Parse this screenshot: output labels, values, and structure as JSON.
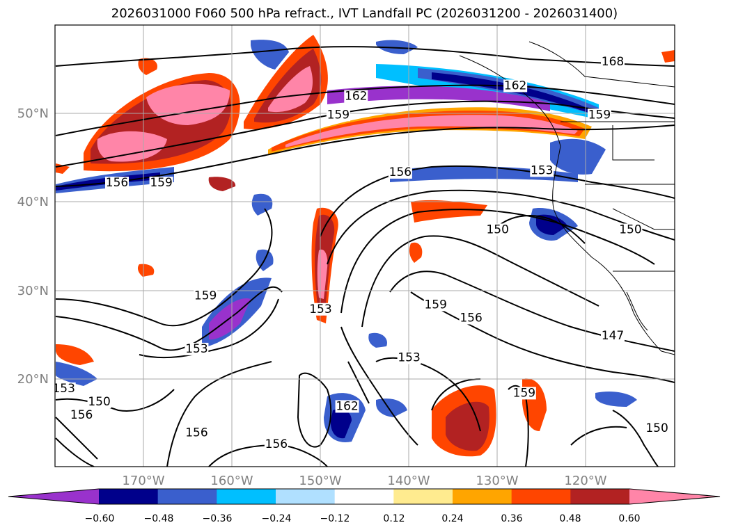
{
  "title": "2026031000 F060 500 hPa refract., IVT Landfall PC (2026031200 - 2026031400)",
  "map": {
    "lon_min": -180,
    "lon_max": -110,
    "lat_min": 10,
    "lat_max": 60,
    "lat_ticks": [
      {
        "value": 20,
        "label": "20°N"
      },
      {
        "value": 30,
        "label": "30°N"
      },
      {
        "value": 40,
        "label": "40°N"
      },
      {
        "value": 50,
        "label": "50°N"
      }
    ],
    "lon_ticks": [
      {
        "value": -170,
        "label": "170°W"
      },
      {
        "value": -160,
        "label": "160°W"
      },
      {
        "value": -150,
        "label": "150°W"
      },
      {
        "value": -140,
        "label": "140°W"
      },
      {
        "value": -130,
        "label": "130°W"
      },
      {
        "value": -120,
        "label": "120°W"
      }
    ]
  },
  "contour_labels": [
    {
      "text": "168",
      "lon": -117,
      "lat": 55.5
    },
    {
      "text": "162",
      "lon": -146,
      "lat": 51.6
    },
    {
      "text": "159",
      "lon": -148,
      "lat": 49.5
    },
    {
      "text": "162",
      "lon": -128,
      "lat": 52.8
    },
    {
      "text": "159",
      "lon": -118.5,
      "lat": 49.5
    },
    {
      "text": "156",
      "lon": -173,
      "lat": 41.8
    },
    {
      "text": "159",
      "lon": -168,
      "lat": 41.8
    },
    {
      "text": "156",
      "lon": -141,
      "lat": 43.0
    },
    {
      "text": "153",
      "lon": -125,
      "lat": 43.2
    },
    {
      "text": "150",
      "lon": -130,
      "lat": 36.5
    },
    {
      "text": "150",
      "lon": -115,
      "lat": 36.5
    },
    {
      "text": "159",
      "lon": -163,
      "lat": 29.0
    },
    {
      "text": "153",
      "lon": -150,
      "lat": 27.5
    },
    {
      "text": "159",
      "lon": -137,
      "lat": 28.0
    },
    {
      "text": "156",
      "lon": -133,
      "lat": 26.5
    },
    {
      "text": "153",
      "lon": -164,
      "lat": 23.0
    },
    {
      "text": "153",
      "lon": -140,
      "lat": 22.0
    },
    {
      "text": "147",
      "lon": -117,
      "lat": 24.5
    },
    {
      "text": "153",
      "lon": -179,
      "lat": 18.5
    },
    {
      "text": "150",
      "lon": -175,
      "lat": 17.0
    },
    {
      "text": "156",
      "lon": -177,
      "lat": 15.5
    },
    {
      "text": "156",
      "lon": -164,
      "lat": 13.5
    },
    {
      "text": "162",
      "lon": -147,
      "lat": 16.5
    },
    {
      "text": "156",
      "lon": -155,
      "lat": 12.2
    },
    {
      "text": "159",
      "lon": -127,
      "lat": 18.0
    },
    {
      "text": "150",
      "lon": -112,
      "lat": 14.0
    }
  ],
  "colorbar": {
    "colors": [
      "#9932cc",
      "#00008b",
      "#3a5fcd",
      "#00bfff",
      "#b0e0ff",
      "#ffffff",
      "#ffeb8f",
      "#ffa500",
      "#ff4500",
      "#b22222",
      "#ff85a8"
    ],
    "tick_labels": [
      "−0.60",
      "−0.48",
      "−0.36",
      "−0.24",
      "−0.12",
      "0.12",
      "0.24",
      "0.36",
      "0.48",
      "0.60"
    ]
  }
}
